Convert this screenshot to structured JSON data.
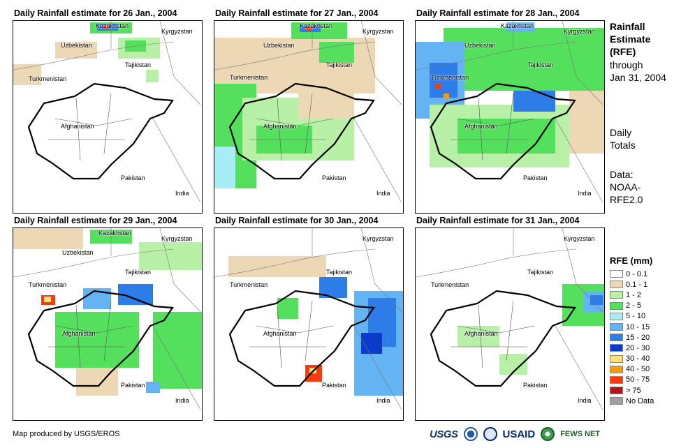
{
  "panels": [
    {
      "title": "Daily Rainfall estimate for 26 Jan., 2004"
    },
    {
      "title": "Daily Rainfall estimate for 27 Jan., 2004"
    },
    {
      "title": "Daily Rainfall estimate for 28 Jan., 2004"
    },
    {
      "title": "Daily Rainfall estimate for 29 Jan., 2004"
    },
    {
      "title": "Daily Rainfall estimate for 30 Jan., 2004"
    },
    {
      "title": "Daily Rainfall estimate for 31 Jan., 2004"
    }
  ],
  "labels": {
    "kazakhstan": "Kazakhstan",
    "kyrgyzstan": "Kyrgyzstan",
    "uzbekistan": "Uzbekistan",
    "tajikistan": "Tajikistan",
    "turkmenistan": "Turkmenistan",
    "afghanistan": "Afghanistan",
    "pakistan": "Pakistan",
    "india": "India"
  },
  "sidebar": {
    "title_lines": [
      "Rainfall",
      "Estimate",
      "(RFE)"
    ],
    "through_lines": [
      "through",
      "Jan 31, 2004"
    ],
    "daily_lines": [
      "Daily",
      "Totals"
    ],
    "data_lines": [
      "Data:",
      "NOAA-",
      "RFE2.0"
    ]
  },
  "legend": {
    "title": "RFE (mm)",
    "items": [
      {
        "label": "0 - 0.1",
        "color": "#ffffff"
      },
      {
        "label": "0.1 - 1",
        "color": "#ecd8b4"
      },
      {
        "label": "1 - 2",
        "color": "#b8f0a8"
      },
      {
        "label": "2 - 5",
        "color": "#54e05c"
      },
      {
        "label": "5 - 10",
        "color": "#a8ecf6"
      },
      {
        "label": "10 - 15",
        "color": "#64b4f4"
      },
      {
        "label": "15 - 20",
        "color": "#2e7ce8"
      },
      {
        "label": "20 - 30",
        "color": "#0a3cc8"
      },
      {
        "label": "30 - 40",
        "color": "#fce27c"
      },
      {
        "label": "40 - 50",
        "color": "#fa9a0a"
      },
      {
        "label": "50 - 75",
        "color": "#f43c10"
      },
      {
        "label": "> 75",
        "color": "#b41414"
      },
      {
        "label": "No Data",
        "color": "#a0a0a0"
      }
    ]
  },
  "footer": {
    "credit": "Map produced by USGS/EROS",
    "logos": {
      "usgs": "USGS",
      "usaid": "USAID",
      "fews": "FEWS NET"
    }
  }
}
